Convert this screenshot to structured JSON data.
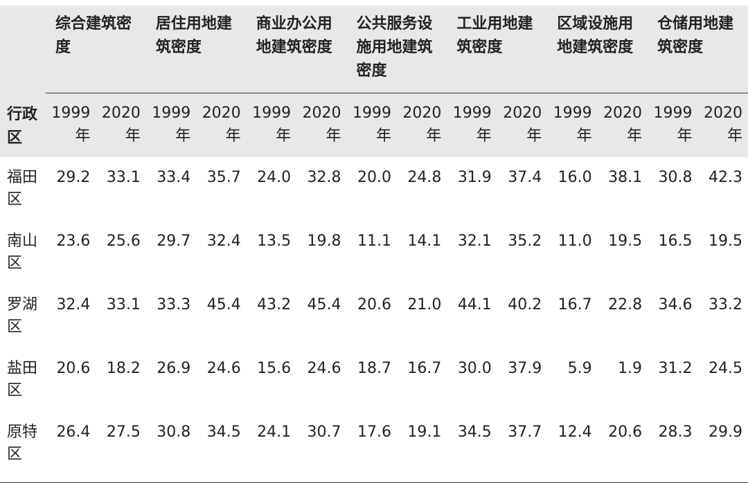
{
  "table": {
    "region_header": "行政区",
    "groups": [
      {
        "label": "综合建筑密度"
      },
      {
        "label": "居住用地建筑密度"
      },
      {
        "label": "商业办公用地建筑密度"
      },
      {
        "label": "公共服务设施用地建筑密度"
      },
      {
        "label": "工业用地建筑密度"
      },
      {
        "label": "区域设施用地建筑密度"
      },
      {
        "label": "仓储用地建筑密度"
      }
    ],
    "year_a": "1999年",
    "year_b": "2020年",
    "rows": [
      {
        "region": "福田区",
        "values": [
          "29.2",
          "33.1",
          "33.4",
          "35.7",
          "24.0",
          "32.8",
          "20.0",
          "24.8",
          "31.9",
          "37.4",
          "16.0",
          "38.1",
          "30.8",
          "42.3"
        ]
      },
      {
        "region": "南山区",
        "values": [
          "23.6",
          "25.6",
          "29.7",
          "32.4",
          "13.5",
          "19.8",
          "11.1",
          "14.1",
          "32.1",
          "35.2",
          "11.0",
          "19.5",
          "16.5",
          "19.5"
        ]
      },
      {
        "region": "罗湖区",
        "values": [
          "32.4",
          "33.1",
          "33.3",
          "45.4",
          "43.2",
          "45.4",
          "20.6",
          "21.0",
          "44.1",
          "40.2",
          "16.7",
          "22.8",
          "34.6",
          "33.2"
        ]
      },
      {
        "region": "盐田区",
        "values": [
          "20.6",
          "18.2",
          "26.9",
          "24.6",
          "15.6",
          "24.6",
          "18.7",
          "16.7",
          "30.0",
          "37.9",
          "5.9",
          "1.9",
          "31.2",
          "24.5"
        ]
      },
      {
        "region": "原特区",
        "values": [
          "26.4",
          "27.5",
          "30.8",
          "34.5",
          "24.1",
          "30.7",
          "17.6",
          "19.1",
          "34.5",
          "37.7",
          "12.4",
          "20.6",
          "28.3",
          "29.9"
        ]
      }
    ]
  }
}
